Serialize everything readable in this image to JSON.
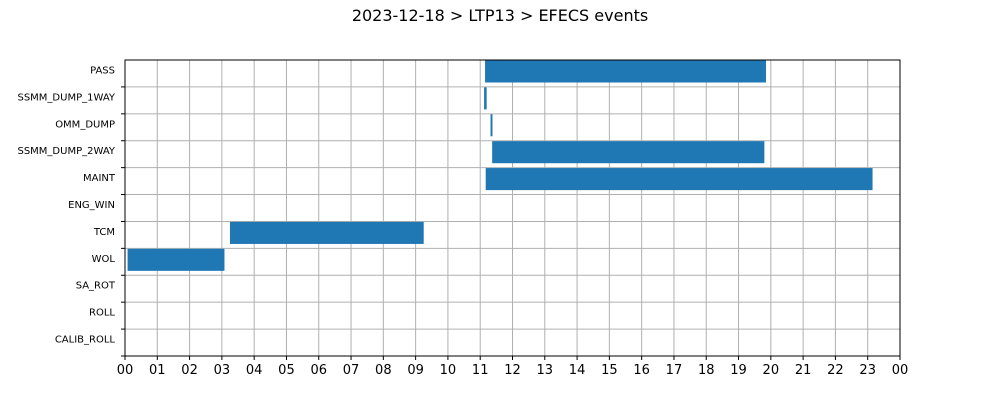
{
  "chart_data": {
    "type": "bar",
    "orientation": "horizontal",
    "title": "2023-12-18 > LTP13 > EFECS events",
    "xlabel": "",
    "ylabel": "",
    "xlim": [
      0,
      24
    ],
    "x_tick_labels": [
      "00",
      "01",
      "02",
      "03",
      "04",
      "05",
      "06",
      "07",
      "08",
      "09",
      "10",
      "11",
      "12",
      "13",
      "14",
      "15",
      "16",
      "17",
      "18",
      "19",
      "20",
      "21",
      "22",
      "23",
      "00"
    ],
    "categories": [
      "PASS",
      "SSMM_DUMP_1WAY",
      "OMM_DUMP",
      "SSMM_DUMP_2WAY",
      "MAINT",
      "ENG_WIN",
      "TCM",
      "WOL",
      "SA_ROT",
      "ROLL",
      "CALIB_ROLL"
    ],
    "bars": [
      {
        "category": "PASS",
        "start": 11.15,
        "end": 19.85
      },
      {
        "category": "SSMM_DUMP_1WAY",
        "start": 11.12,
        "end": 11.2
      },
      {
        "category": "OMM_DUMP",
        "start": 11.32,
        "end": 11.38
      },
      {
        "category": "SSMM_DUMP_2WAY",
        "start": 11.37,
        "end": 19.8
      },
      {
        "category": "MAINT",
        "start": 11.17,
        "end": 23.15
      },
      {
        "category": "TCM",
        "start": 3.25,
        "end": 9.25
      },
      {
        "category": "WOL",
        "start": 0.08,
        "end": 3.08
      }
    ],
    "bar_color": "#1f77b4",
    "grid": true,
    "legend": "none"
  }
}
